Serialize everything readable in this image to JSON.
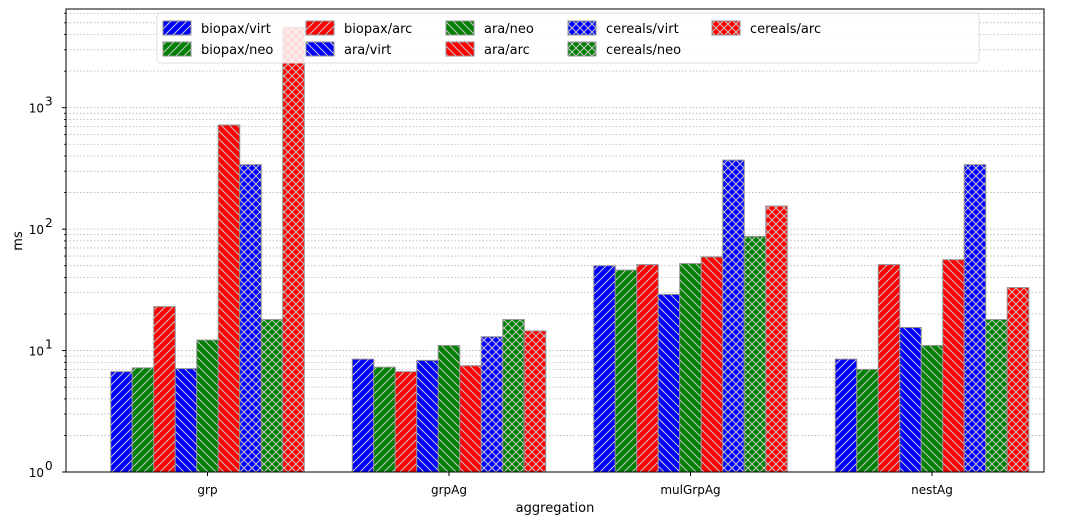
{
  "chart_data": {
    "type": "bar",
    "categories": [
      "grp",
      "grpAg",
      "mulGrpAg",
      "nestAg"
    ],
    "xlabel": "aggregation",
    "ylabel": "ms",
    "yscale": "log",
    "ylim": [
      1,
      6500
    ],
    "y_ticks": [
      {
        "value": 1,
        "base": "10",
        "exp": "0"
      },
      {
        "value": 10,
        "base": "10",
        "exp": "1"
      },
      {
        "value": 100,
        "base": "10",
        "exp": "2"
      },
      {
        "value": 1000,
        "base": "10",
        "exp": "3"
      }
    ],
    "grid": "y-major-and-minor-dotted",
    "legend": {
      "placement": "top",
      "columns": 6
    },
    "series": [
      {
        "name": "biopax/virt",
        "color": "#0000ff",
        "hatch": "forward",
        "values": [
          6.7,
          8.5,
          50,
          8.5
        ]
      },
      {
        "name": "biopax/neo",
        "color": "#008000",
        "hatch": "forward",
        "values": [
          7.2,
          7.3,
          46,
          7.0
        ]
      },
      {
        "name": "biopax/arc",
        "color": "#ff0000",
        "hatch": "forward",
        "values": [
          23,
          6.7,
          51,
          51
        ]
      },
      {
        "name": "ara/virt",
        "color": "#0000ff",
        "hatch": "back",
        "values": [
          7.1,
          8.3,
          29,
          15.5
        ]
      },
      {
        "name": "ara/neo",
        "color": "#008000",
        "hatch": "back",
        "values": [
          12.2,
          11,
          52,
          11
        ]
      },
      {
        "name": "ara/arc",
        "color": "#ff0000",
        "hatch": "back",
        "values": [
          720,
          7.5,
          59,
          56
        ]
      },
      {
        "name": "cereals/virt",
        "color": "#0000ff",
        "hatch": "cross",
        "values": [
          340,
          13,
          370,
          340
        ]
      },
      {
        "name": "cereals/neo",
        "color": "#008000",
        "hatch": "cross",
        "values": [
          18,
          18,
          87,
          18
        ]
      },
      {
        "name": "cereals/arc",
        "color": "#ff0000",
        "hatch": "cross",
        "values": [
          4600,
          14.5,
          155,
          33
        ]
      }
    ]
  }
}
